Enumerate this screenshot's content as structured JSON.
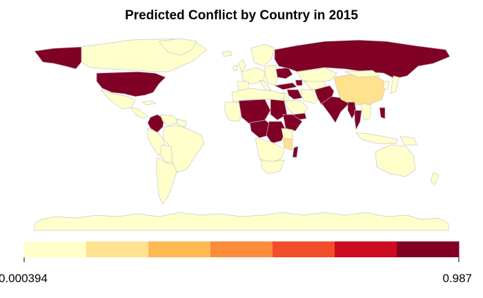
{
  "title": "Predicted Conflict by Country in 2015",
  "legend": {
    "min_label": "0.000394",
    "max_label": "0.987",
    "min_value": 0.000394,
    "max_value": 0.987,
    "palette": [
      "#FFFFCC",
      "#FFE28F",
      "#FEB953",
      "#FD8C3C",
      "#F24E2C",
      "#CD0B21",
      "#800026"
    ]
  },
  "regions": [
    {
      "name": "canada",
      "level": 0
    },
    {
      "name": "alaska",
      "level": 6
    },
    {
      "name": "greenland",
      "level": 0
    },
    {
      "name": "united-states",
      "level": 6
    },
    {
      "name": "mexico",
      "level": 0
    },
    {
      "name": "central-america",
      "level": 0
    },
    {
      "name": "cuba",
      "level": 0
    },
    {
      "name": "colombia",
      "level": 6
    },
    {
      "name": "venezuela",
      "level": 0
    },
    {
      "name": "guiana",
      "level": 0
    },
    {
      "name": "brazil",
      "level": 0
    },
    {
      "name": "peru-ecuador",
      "level": 0
    },
    {
      "name": "bolivia-paraguay",
      "level": 0
    },
    {
      "name": "argentina-chile",
      "level": 0
    },
    {
      "name": "uk",
      "level": 0
    },
    {
      "name": "ireland",
      "level": 0
    },
    {
      "name": "iceland",
      "level": 0
    },
    {
      "name": "scandinavia",
      "level": 0
    },
    {
      "name": "western-europe",
      "level": 0
    },
    {
      "name": "iberia",
      "level": 0
    },
    {
      "name": "italy",
      "level": 0
    },
    {
      "name": "eastern-europe",
      "level": 0
    },
    {
      "name": "ukraine",
      "level": 6
    },
    {
      "name": "russia",
      "level": 6
    },
    {
      "name": "turkey",
      "level": 6
    },
    {
      "name": "caucasus",
      "level": 6
    },
    {
      "name": "iran",
      "level": 0
    },
    {
      "name": "middle-east",
      "level": 0
    },
    {
      "name": "saudi-arabia",
      "level": 0
    },
    {
      "name": "yemen",
      "level": 6
    },
    {
      "name": "iraq-syria",
      "level": 6
    },
    {
      "name": "kazakhstan",
      "level": 0
    },
    {
      "name": "central-asia",
      "level": 0
    },
    {
      "name": "afghanistan-pakistan",
      "level": 6
    },
    {
      "name": "india",
      "level": 6
    },
    {
      "name": "china",
      "level": 1
    },
    {
      "name": "mongolia",
      "level": 0
    },
    {
      "name": "korea",
      "level": 0
    },
    {
      "name": "japan",
      "level": 0
    },
    {
      "name": "myanmar",
      "level": 6
    },
    {
      "name": "thailand",
      "level": 6
    },
    {
      "name": "indochina",
      "level": 0
    },
    {
      "name": "philippines",
      "level": 6
    },
    {
      "name": "indonesia",
      "level": 0
    },
    {
      "name": "new-guinea",
      "level": 0
    },
    {
      "name": "australia",
      "level": 0
    },
    {
      "name": "new-zealand",
      "level": 0
    },
    {
      "name": "north-africa",
      "level": 0
    },
    {
      "name": "west-africa",
      "level": 0
    },
    {
      "name": "sahel",
      "level": 6
    },
    {
      "name": "sudan",
      "level": 6
    },
    {
      "name": "horn-of-africa",
      "level": 6
    },
    {
      "name": "central-africa",
      "level": 6
    },
    {
      "name": "dr-congo",
      "level": 6
    },
    {
      "name": "east-africa",
      "level": 0
    },
    {
      "name": "tanzania",
      "level": 1
    },
    {
      "name": "southern-africa",
      "level": 0
    },
    {
      "name": "south-africa",
      "level": 0
    },
    {
      "name": "madagascar",
      "level": 6
    },
    {
      "name": "antarctica",
      "level": 0
    }
  ]
}
